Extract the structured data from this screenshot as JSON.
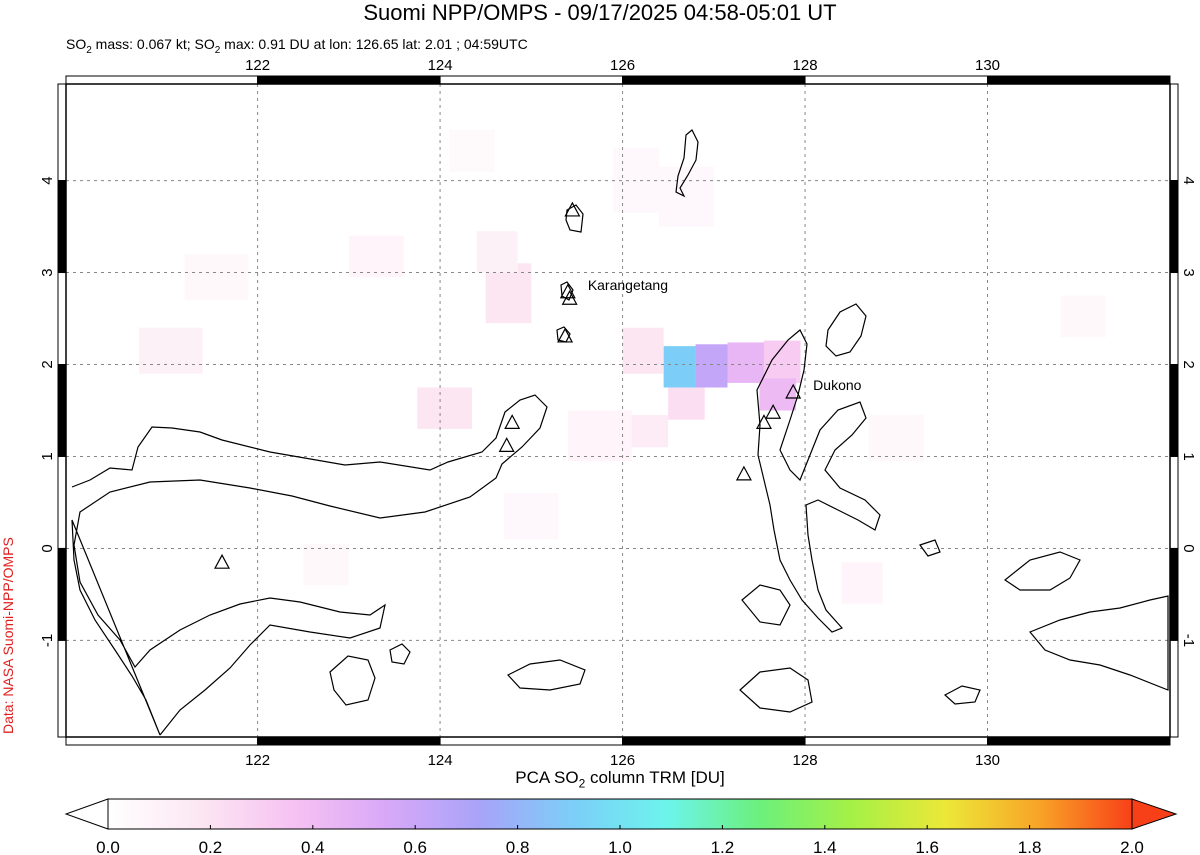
{
  "header": {
    "title": "Suomi NPP/OMPS - 09/17/2025 04:58-05:01 UT",
    "subtitle": "SO2 mass: 0.067 kt; SO2 max: 0.91 DU at lon: 126.65 lat: 2.01 ; 04:59UTC"
  },
  "credit": "Data: NASA Suomi-NPP/OMPS",
  "map": {
    "lon_range": [
      119.9,
      132.0
    ],
    "lat_range": [
      -2.05,
      5.05
    ],
    "lon_ticks": [
      "122",
      "124",
      "126",
      "128",
      "130"
    ],
    "lat_ticks": [
      "4",
      "3",
      "2",
      "1",
      "0",
      "-1"
    ],
    "volcano_labels": [
      {
        "name": "Karangetang",
        "lon": 125.4,
        "lat": 2.78
      },
      {
        "name": "Dukono",
        "lon": 127.87,
        "lat": 1.69
      }
    ],
    "volcanoes": [
      {
        "lon": 125.45,
        "lat": 3.67
      },
      {
        "lon": 125.4,
        "lat": 2.78
      },
      {
        "lon": 125.42,
        "lat": 2.71
      },
      {
        "lon": 125.37,
        "lat": 2.3
      },
      {
        "lon": 127.87,
        "lat": 1.69
      },
      {
        "lon": 127.65,
        "lat": 1.47
      },
      {
        "lon": 127.55,
        "lat": 1.36
      },
      {
        "lon": 124.79,
        "lat": 1.36
      },
      {
        "lon": 124.73,
        "lat": 1.11
      },
      {
        "lon": 127.33,
        "lat": 0.8
      },
      {
        "lon": 121.61,
        "lat": -0.16
      }
    ],
    "so2_pixels": [
      {
        "lon": [
          126.45,
          126.8
        ],
        "lat": [
          1.75,
          2.2
        ],
        "du": 0.91
      },
      {
        "lon": [
          126.8,
          127.15
        ],
        "lat": [
          1.75,
          2.22
        ],
        "du": 0.62
      },
      {
        "lon": [
          127.15,
          127.55
        ],
        "lat": [
          1.8,
          2.24
        ],
        "du": 0.45
      },
      {
        "lon": [
          127.55,
          127.95
        ],
        "lat": [
          1.8,
          2.26
        ],
        "du": 0.32
      },
      {
        "lon": [
          127.5,
          127.9
        ],
        "lat": [
          1.5,
          1.85
        ],
        "du": 0.42
      },
      {
        "lon": [
          126.0,
          126.45
        ],
        "lat": [
          1.9,
          2.4
        ],
        "du": 0.18
      },
      {
        "lon": [
          126.5,
          126.9
        ],
        "lat": [
          1.4,
          1.75
        ],
        "du": 0.22
      },
      {
        "lon": [
          126.0,
          126.5
        ],
        "lat": [
          1.1,
          1.45
        ],
        "du": 0.14
      },
      {
        "lon": [
          123.75,
          124.35
        ],
        "lat": [
          1.3,
          1.75
        ],
        "du": 0.18
      },
      {
        "lon": [
          124.5,
          125.0
        ],
        "lat": [
          2.45,
          3.1
        ],
        "du": 0.18
      },
      {
        "lon": [
          124.4,
          124.85
        ],
        "lat": [
          3.0,
          3.45
        ],
        "du": 0.1
      },
      {
        "lon": [
          120.7,
          121.4
        ],
        "lat": [
          1.9,
          2.4
        ],
        "du": 0.1
      },
      {
        "lon": [
          123.0,
          123.6
        ],
        "lat": [
          2.95,
          3.4
        ],
        "du": 0.08
      },
      {
        "lon": [
          125.9,
          126.4
        ],
        "lat": [
          3.65,
          4.35
        ],
        "du": 0.06
      },
      {
        "lon": [
          126.4,
          127.0
        ],
        "lat": [
          3.5,
          4.15
        ],
        "du": 0.06
      },
      {
        "lon": [
          125.4,
          126.1
        ],
        "lat": [
          0.95,
          1.5
        ],
        "du": 0.08
      },
      {
        "lon": [
          128.4,
          128.85
        ],
        "lat": [
          -0.6,
          -0.15
        ],
        "du": 0.08
      },
      {
        "lon": [
          130.8,
          131.3
        ],
        "lat": [
          2.3,
          2.75
        ],
        "du": 0.05
      },
      {
        "lon": [
          121.2,
          121.9
        ],
        "lat": [
          2.7,
          3.2
        ],
        "du": 0.05
      },
      {
        "lon": [
          122.5,
          123.0
        ],
        "lat": [
          -0.4,
          0.05
        ],
        "du": 0.05
      },
      {
        "lon": [
          124.7,
          125.3
        ],
        "lat": [
          0.1,
          0.6
        ],
        "du": 0.06
      },
      {
        "lon": [
          128.7,
          129.3
        ],
        "lat": [
          0.95,
          1.45
        ],
        "du": 0.05
      },
      {
        "lon": [
          124.1,
          124.6
        ],
        "lat": [
          4.1,
          4.55
        ],
        "du": 0.04
      }
    ]
  },
  "colorbar": {
    "title": "PCA SO2 column TRM [DU]",
    "min": 0.0,
    "max": 2.0,
    "tick_labels": [
      "0.0",
      "0.2",
      "0.4",
      "0.6",
      "0.8",
      "1.0",
      "1.2",
      "1.4",
      "1.6",
      "1.8",
      "2.0"
    ],
    "colors": [
      "#ffffff",
      "#fce6f2",
      "#f6c2f2",
      "#d8a8f8",
      "#a8a4f8",
      "#7ccef8",
      "#6cf4ec",
      "#6cf07c",
      "#a6f046",
      "#ece838",
      "#f8a428",
      "#f84018"
    ]
  }
}
